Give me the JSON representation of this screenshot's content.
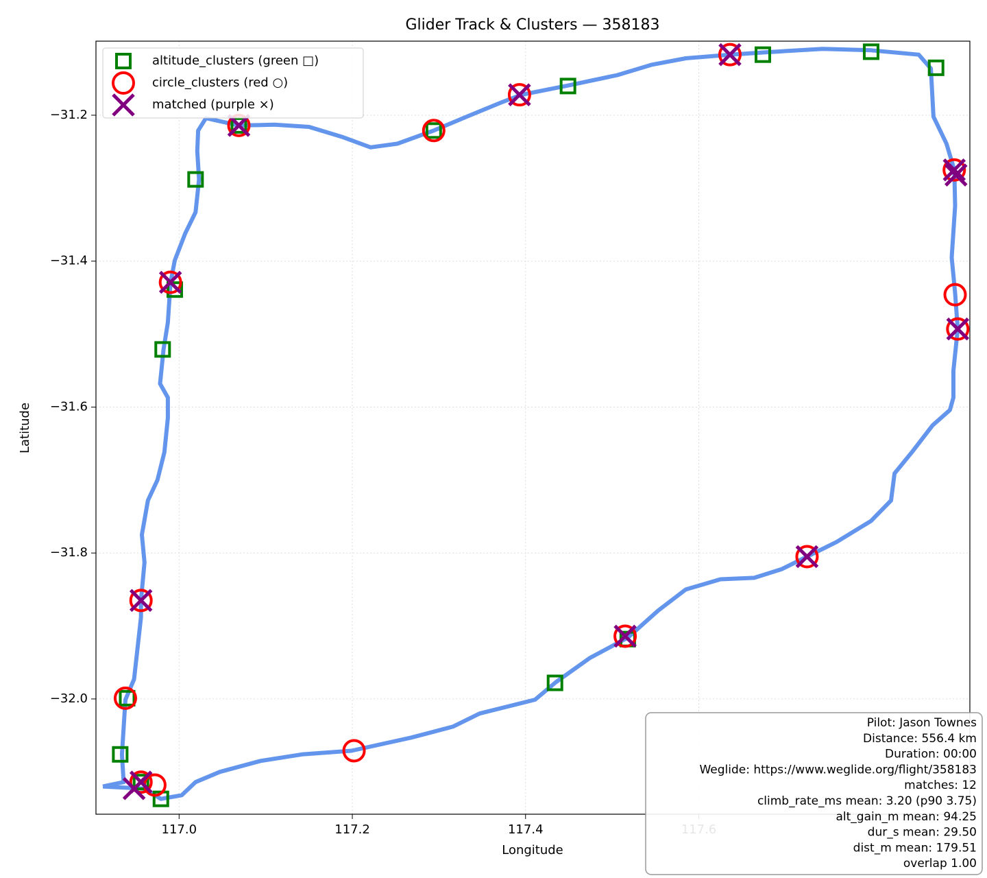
{
  "chart_data": {
    "type": "scatter",
    "title": "Glider Track & Clusters — 358183",
    "x_label": "Longitude",
    "y_label": "Latitude",
    "xlim": [
      116.904,
      117.913
    ],
    "ylim": [
      -32.158,
      -31.0985
    ],
    "xticks": [
      {
        "value": 117.0,
        "label": "117.0"
      },
      117.2,
      117.4,
      117.6
    ],
    "yticks": [
      {
        "value": -31.2,
        "label": "−31.2"
      },
      {
        "value": -31.4,
        "label": "−31.4"
      },
      {
        "value": -31.6,
        "label": "−31.6"
      },
      {
        "value": -31.8,
        "label": "−31.8"
      },
      {
        "value": -32.0,
        "label": "−32.0"
      }
    ],
    "grid": true,
    "legend": "upper left",
    "series": [
      {
        "marker": "line",
        "color": "#6495ed",
        "x": [
          116.912,
          116.936,
          116.934,
          116.938,
          116.948,
          116.956,
          116.956,
          116.96,
          116.957,
          116.964,
          116.975,
          116.983,
          116.987,
          116.987,
          116.978,
          116.982,
          116.987,
          116.99,
          116.995,
          117.007,
          117.019,
          117.023,
          117.021,
          117.022,
          117.031,
          117.069,
          117.11,
          117.15,
          117.189,
          117.221,
          117.252,
          117.294,
          117.332,
          117.371,
          117.395,
          117.45,
          117.506,
          117.545,
          117.585,
          117.636,
          117.674,
          117.743,
          117.799,
          117.854,
          117.868,
          117.871,
          117.886,
          117.895,
          117.896,
          117.892,
          117.896,
          117.899,
          117.894,
          117.894,
          117.89,
          117.87,
          117.846,
          117.826,
          117.822,
          117.799,
          117.759,
          117.725,
          117.696,
          117.664,
          117.625,
          117.585,
          117.553,
          117.518,
          117.474,
          117.435,
          117.411,
          117.347,
          117.316,
          117.268,
          117.199,
          117.142,
          117.094,
          117.047,
          117.019,
          117.003,
          116.979,
          116.96,
          116.912
        ],
        "y": [
          -32.12,
          -32.114,
          -32.076,
          -32.001,
          -31.973,
          -31.888,
          -31.865,
          -31.813,
          -31.775,
          -31.728,
          -31.7,
          -31.662,
          -31.615,
          -31.587,
          -31.568,
          -31.521,
          -31.484,
          -31.43,
          -31.399,
          -31.362,
          -31.333,
          -31.288,
          -31.249,
          -31.221,
          -31.204,
          -31.214,
          -31.213,
          -31.216,
          -31.23,
          -31.244,
          -31.239,
          -31.221,
          -31.202,
          -31.183,
          -31.172,
          -31.159,
          -31.145,
          -31.131,
          -31.122,
          -31.117,
          -31.114,
          -31.109,
          -31.111,
          -31.117,
          -31.136,
          -31.202,
          -31.239,
          -31.275,
          -31.324,
          -31.395,
          -31.444,
          -31.493,
          -31.55,
          -31.587,
          -31.604,
          -31.625,
          -31.662,
          -31.691,
          -31.728,
          -31.756,
          -31.785,
          -31.805,
          -31.822,
          -31.834,
          -31.836,
          -31.85,
          -31.879,
          -31.916,
          -31.944,
          -31.977,
          -32.001,
          -32.02,
          -32.038,
          -32.053,
          -32.071,
          -32.076,
          -32.085,
          -32.1,
          -32.114,
          -32.132,
          -32.137,
          -32.123,
          -32.12
        ]
      },
      {
        "name": "altitude_clusters (green □)",
        "marker": "square",
        "color": "green",
        "x": [
          117.019,
          116.981,
          116.995,
          117.069,
          117.294,
          117.449,
          117.674,
          117.799,
          117.874,
          117.518,
          117.434,
          116.94,
          116.932,
          116.979,
          116.956
        ],
        "y": [
          -31.288,
          -31.521,
          -31.439,
          -31.214,
          -31.221,
          -31.16,
          -31.117,
          -31.113,
          -31.135,
          -31.918,
          -31.978,
          -31.999,
          -32.076,
          -32.137,
          -32.114
        ]
      },
      {
        "name": "circle_clusters (red ○)",
        "marker": "circle",
        "color": "red",
        "x": [
          117.069,
          117.294,
          117.393,
          117.636,
          117.895,
          117.896,
          117.899,
          117.725,
          117.515,
          117.202,
          116.972,
          116.956,
          116.938,
          116.956,
          116.99
        ],
        "y": [
          -31.214,
          -31.221,
          -31.172,
          -31.117,
          -31.275,
          -31.446,
          -31.493,
          -31.805,
          -31.914,
          -32.071,
          -32.118,
          -32.114,
          -31.999,
          -31.865,
          -31.429
        ]
      },
      {
        "name": "matched (purple ×)",
        "marker": "x",
        "color": "purple",
        "x": [
          117.069,
          117.393,
          117.636,
          117.895,
          117.897,
          117.899,
          117.725,
          117.515,
          116.956,
          116.948,
          116.956,
          116.99
        ],
        "y": [
          -31.214,
          -31.172,
          -31.117,
          -31.275,
          -31.282,
          -31.493,
          -31.805,
          -31.914,
          -32.114,
          -32.123,
          -31.865,
          -31.429
        ]
      }
    ],
    "annotation": [
      "Pilot: Jason Townes",
      "Distance: 556.4 km",
      "Duration: 00:00",
      "Weglide: https://www.weglide.org/flight/358183",
      "matches: 12",
      "climb_rate_ms mean: 3.20 (p90 3.75)",
      "alt_gain_m mean: 94.25",
      "dur_s mean: 29.50",
      "dist_m mean: 179.51",
      "overlap 1.00"
    ]
  }
}
